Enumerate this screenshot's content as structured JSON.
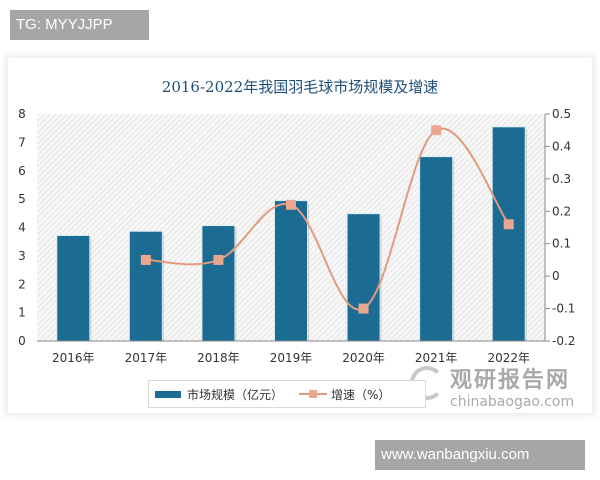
{
  "overlays": {
    "tg_label": "TG: MYYJJPP",
    "site_label": "www.wanbangxiu.com"
  },
  "watermark": {
    "cn": "观研报告网",
    "en": "chinabaogao.com"
  },
  "colors": {
    "bar": "#1b6b93",
    "line": "#e29b7e",
    "title": "#1f4e79"
  },
  "chart_data": {
    "type": "bar",
    "title": "2016-2022年我国羽毛球市场规模及增速",
    "categories": [
      "2016年",
      "2017年",
      "2018年",
      "2019年",
      "2020年",
      "2021年",
      "2022年"
    ],
    "series": [
      {
        "name": "市场规模（亿元）",
        "type": "bar",
        "axis": "left",
        "values": [
          3.7,
          3.85,
          4.05,
          4.93,
          4.47,
          6.48,
          7.53
        ]
      },
      {
        "name": "增速（%）",
        "type": "line",
        "axis": "right",
        "values": [
          null,
          0.05,
          0.05,
          0.22,
          -0.1,
          0.45,
          0.16
        ]
      }
    ],
    "xlabel": "",
    "ylabel": "",
    "ylim": [
      0,
      8
    ],
    "yticks": [
      "0",
      "1",
      "2",
      "3",
      "4",
      "5",
      "6",
      "7",
      "8"
    ],
    "y2lim": [
      -0.2,
      0.5
    ],
    "y2ticks": [
      "-0.2",
      "-0.1",
      "0",
      "0.1",
      "0.2",
      "0.3",
      "0.4",
      "0.5"
    ],
    "legend": [
      "市场规模（亿元）",
      "增速（%）"
    ],
    "legend_position": "bottom",
    "grid": false
  }
}
